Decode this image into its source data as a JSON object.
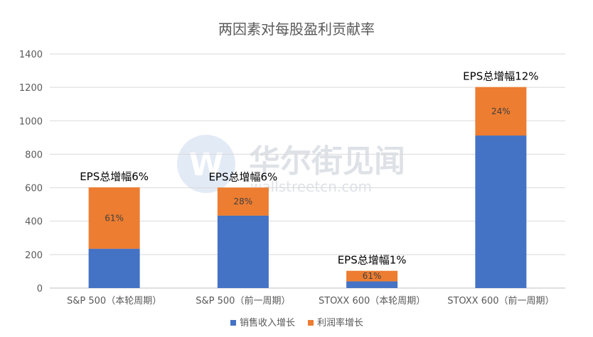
{
  "chart_data": {
    "type": "bar",
    "stacked": true,
    "title": "两因素对每股盈利贡献率",
    "categories": [
      "S&P 500（本轮周期）",
      "S&P 500（前一周期）",
      "STOXX 600（本轮周期）",
      "STOXX 600（前一周期）"
    ],
    "series": [
      {
        "name": "销售收入增长",
        "color": "#4472C4",
        "values": [
          235,
          433,
          40,
          912
        ]
      },
      {
        "name": "利润率增长",
        "color": "#ED7D31",
        "values": [
          367,
          168,
          63,
          290
        ]
      }
    ],
    "segment_labels": [
      "61%",
      "28%",
      "61%",
      "24%"
    ],
    "total_labels": [
      "EPS总增幅6%",
      "EPS总增幅6%",
      "EPS总增幅1%",
      "EPS总增幅12%"
    ],
    "ylim": [
      0,
      1400
    ],
    "yticks": [
      "0",
      "200",
      "400",
      "600",
      "800",
      "1000",
      "1200",
      "1400"
    ],
    "grid": true,
    "legend_position": "bottom"
  },
  "watermark": {
    "text_cn": "华尔街见闻",
    "text_en": "wallstreetcn.com",
    "logo_letter": "W"
  }
}
